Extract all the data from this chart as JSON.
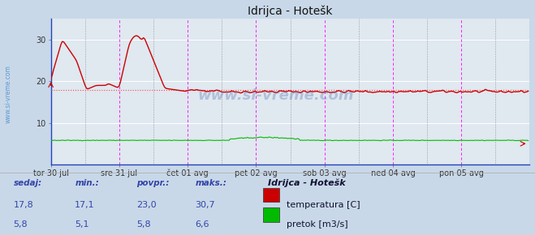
{
  "title": "Idrijca - Hotešk",
  "bg_color": "#c8d8e8",
  "plot_bg_color": "#e0e8f0",
  "grid_color": "#ffffff",
  "x_labels": [
    "tor 30 jul",
    "sre 31 jul",
    "čet 01 avg",
    "pet 02 avg",
    "sob 03 avg",
    "ned 04 avg",
    "pon 05 avg"
  ],
  "y_ticks": [
    10,
    20,
    30
  ],
  "ylim": [
    0,
    35
  ],
  "xlim": [
    0,
    336
  ],
  "avg_line_y": 18.0,
  "avg_line_color": "#ff4444",
  "temp_color": "#cc0000",
  "flow_color": "#00bb00",
  "watermark_text": "www.si-vreme.com",
  "watermark_color": "#4466aa",
  "sidebar_text": "www.si-vreme.com",
  "sidebar_color": "#4488cc",
  "text_color": "#3344aa",
  "border_color": "#2244bb",
  "vline_magenta": "#ff00ff",
  "vline_dark": "#666666",
  "bottom_bg": "#c8d8e8",
  "headers": [
    "sedaj:",
    "min.:",
    "povpr.:",
    "maks.:"
  ],
  "row1": [
    "17,8",
    "17,1",
    "23,0",
    "30,7"
  ],
  "row2": [
    "5,8",
    "5,1",
    "5,8",
    "6,6"
  ],
  "legend_title": "Idrijca - Hotešk",
  "legend_items": [
    "temperatura [C]",
    "pretok [m3/s]"
  ],
  "legend_colors": [
    "#cc0000",
    "#00bb00"
  ],
  "n_points": 336,
  "day_ticks": [
    0,
    48,
    96,
    144,
    192,
    240,
    288
  ]
}
